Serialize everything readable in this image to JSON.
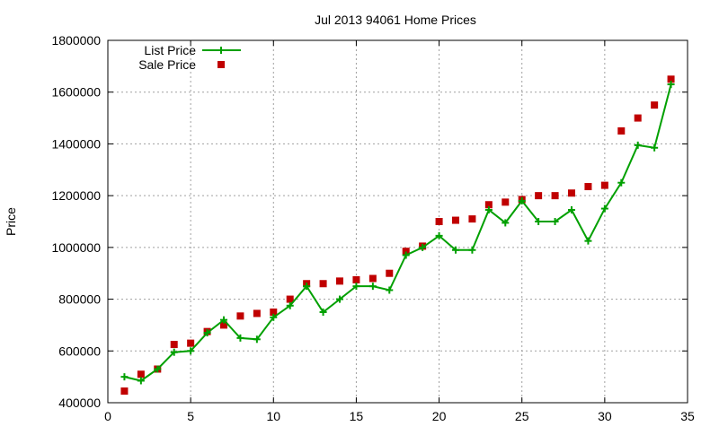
{
  "chart_data": {
    "type": "line",
    "title": "Jul 2013 94061 Home Prices",
    "xlabel": "",
    "ylabel": "Price",
    "xlim": [
      0,
      35
    ],
    "ylim": [
      400000,
      1800000
    ],
    "x_ticks": [
      "0",
      "5",
      "10",
      "15",
      "20",
      "25",
      "30",
      "35"
    ],
    "y_ticks": [
      "400000",
      "600000",
      "800000",
      "1000000",
      "1200000",
      "1400000",
      "1600000",
      "1800000"
    ],
    "grid": true,
    "legend_position": "top-left",
    "x": [
      1,
      2,
      3,
      4,
      5,
      6,
      7,
      8,
      9,
      10,
      11,
      12,
      13,
      14,
      15,
      16,
      17,
      18,
      19,
      20,
      21,
      22,
      23,
      24,
      25,
      26,
      27,
      28,
      29,
      30,
      31,
      32,
      33,
      34
    ],
    "series": [
      {
        "name": "List Price",
        "style": "line-with-plus-markers",
        "color": "#00a000",
        "values": [
          500000,
          485000,
          530000,
          595000,
          600000,
          670000,
          720000,
          650000,
          645000,
          730000,
          775000,
          850000,
          750000,
          800000,
          850000,
          850000,
          835000,
          970000,
          1000000,
          1045000,
          990000,
          990000,
          1145000,
          1095000,
          1180000,
          1100000,
          1100000,
          1145000,
          1025000,
          1150000,
          1250000,
          1395000,
          1385000,
          1630000
        ]
      },
      {
        "name": "Sale Price",
        "style": "square-markers",
        "color": "#c00000",
        "values": [
          445000,
          510000,
          530000,
          625000,
          630000,
          675000,
          700000,
          735000,
          745000,
          750000,
          800000,
          860000,
          860000,
          870000,
          875000,
          880000,
          900000,
          985000,
          1005000,
          1100000,
          1105000,
          1110000,
          1165000,
          1175000,
          1185000,
          1200000,
          1200000,
          1210000,
          1235000,
          1240000,
          1450000,
          1500000,
          1550000,
          1650000
        ]
      }
    ]
  }
}
